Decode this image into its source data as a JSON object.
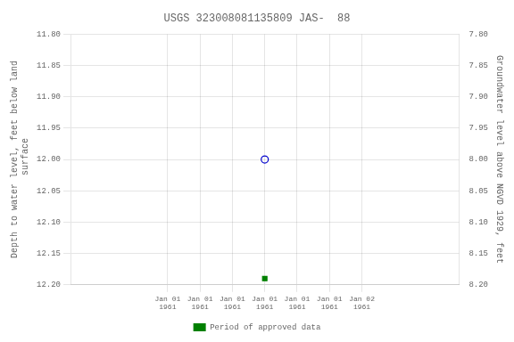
{
  "chart_data": {
    "type": "scatter",
    "title": "USGS 323008081135809 JAS-  88",
    "y_label": "Depth to water level, feet below land\n surface",
    "y2_label": "Groundwater level above NGVD 1929, feet",
    "x": [
      0.5
    ],
    "series": [
      {
        "color": "#0000cc",
        "marker": "circle_open",
        "values": [
          12.0
        ]
      },
      {
        "name": "Period of approved data",
        "color": "#008000",
        "marker": "square",
        "values": [
          12.19
        ]
      }
    ],
    "xlim": [
      -0.5,
      1.5
    ],
    "xticks": [
      {
        "value": 0.0,
        "label": "Jan 01\n1961"
      },
      {
        "value": 0.16667,
        "label": "Jan 01\n1961"
      },
      {
        "value": 0.33333,
        "label": "Jan 01\n1961"
      },
      {
        "value": 0.5,
        "label": "Jan 01\n1961"
      },
      {
        "value": 0.66667,
        "label": "Jan 01\n1961"
      },
      {
        "value": 0.83333,
        "label": "Jan 01\n1961"
      },
      {
        "value": 1.0,
        "label": "Jan 02\n1961"
      }
    ],
    "ylim": [
      12.2,
      11.8
    ],
    "yticks": [
      {
        "value": 11.8,
        "label": "11.80"
      },
      11.85,
      {
        "value": 11.9,
        "label": "11.90"
      },
      11.95,
      {
        "value": 12.0,
        "label": "12.00"
      },
      12.05,
      {
        "value": 12.1,
        "label": "12.10"
      },
      12.15,
      {
        "value": 12.2,
        "label": "12.20"
      }
    ],
    "y2lim": [
      8.2,
      7.8
    ],
    "y2ticks": [
      {
        "value": 8.2,
        "label": "8.20"
      },
      8.15,
      {
        "value": 8.1,
        "label": "8.10"
      },
      8.05,
      {
        "value": 8.0,
        "label": "8.00"
      },
      7.95,
      {
        "value": 7.9,
        "label": "7.90"
      },
      7.85,
      {
        "value": 7.8,
        "label": "7.80"
      }
    ],
    "grid": true,
    "legend": "bottom"
  }
}
